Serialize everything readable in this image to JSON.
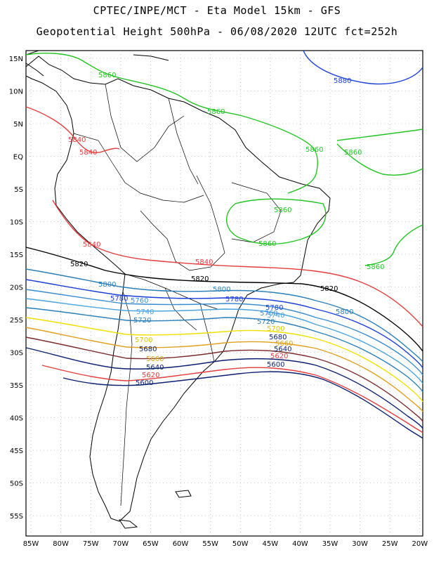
{
  "title_line1": "CPTEC/INPE/MCT -  Eta Model 15km - GFS",
  "title_line2": "Geopotential Height 500hPa - 06/08/2020 12UTC fct=252h",
  "lat_ticks": [
    "15N",
    "10N",
    "5N",
    "EQ",
    "5S",
    "10S",
    "15S",
    "20S",
    "25S",
    "30S",
    "35S",
    "40S",
    "45S",
    "50S",
    "55S"
  ],
  "lon_ticks": [
    "85W",
    "80W",
    "75W",
    "70W",
    "65W",
    "60W",
    "55W",
    "50W",
    "45W",
    "40W",
    "35W",
    "30W",
    "25W",
    "20W"
  ],
  "contour_levels": [
    {
      "value": "5880",
      "color": "#1a3fd6"
    },
    {
      "value": "5860",
      "color": "#22c422"
    },
    {
      "value": "5840",
      "color": "#e23c3c"
    },
    {
      "value": "5820",
      "color": "#000000"
    },
    {
      "value": "5800",
      "color": "#2a7fb8"
    },
    {
      "value": "5780",
      "color": "#1a3fd6"
    },
    {
      "value": "5760",
      "color": "#3a8ccf"
    },
    {
      "value": "5740",
      "color": "#4aa3dd"
    },
    {
      "value": "5720",
      "color": "#2a7fb8"
    },
    {
      "value": "5700",
      "color": "#f0e000"
    },
    {
      "value": "5680",
      "color": "#e0a020"
    },
    {
      "value": "5660",
      "color": "#7a2a2a"
    },
    {
      "value": "5640",
      "color": "#0a1f6f"
    },
    {
      "value": "5620",
      "color": "#e23c3c"
    },
    {
      "value": "5600",
      "color": "#0a1f6f"
    }
  ],
  "contour_labels": [
    {
      "id": "l5880",
      "text": "5880"
    },
    {
      "id": "l5860a",
      "text": "5860"
    },
    {
      "id": "l5860b",
      "text": "5860"
    },
    {
      "id": "l5860c",
      "text": "5860"
    },
    {
      "id": "l5860d",
      "text": "5860"
    },
    {
      "id": "l5860e",
      "text": "5860"
    },
    {
      "id": "l5860f",
      "text": "5860"
    },
    {
      "id": "l5860g",
      "text": "5860"
    },
    {
      "id": "l5840a",
      "text": "5840"
    },
    {
      "id": "l5840b",
      "text": "5840"
    },
    {
      "id": "l5840c",
      "text": "5840"
    },
    {
      "id": "l5840d",
      "text": "5840"
    },
    {
      "id": "l5820a",
      "text": "5820"
    },
    {
      "id": "l5820b",
      "text": "5820"
    },
    {
      "id": "l5820c",
      "text": "5820"
    },
    {
      "id": "l5800a",
      "text": "5800"
    },
    {
      "id": "l5800b",
      "text": "5800"
    },
    {
      "id": "l5800c",
      "text": "5800"
    },
    {
      "id": "l5780a",
      "text": "5780"
    },
    {
      "id": "l5780b",
      "text": "5780"
    },
    {
      "id": "l5780c",
      "text": "5780"
    },
    {
      "id": "l5760a",
      "text": "5760"
    },
    {
      "id": "l5760b",
      "text": "5760"
    },
    {
      "id": "l5740a",
      "text": "5740"
    },
    {
      "id": "l5740b",
      "text": "5740"
    },
    {
      "id": "l5720a",
      "text": "5720"
    },
    {
      "id": "l5720b",
      "text": "5720"
    },
    {
      "id": "l5700a",
      "text": "5700"
    },
    {
      "id": "l5700b",
      "text": "5700"
    },
    {
      "id": "l5680a",
      "text": "5680"
    },
    {
      "id": "l5680b",
      "text": "5680"
    },
    {
      "id": "l5660a",
      "text": "5660"
    },
    {
      "id": "l5660b",
      "text": "5660"
    },
    {
      "id": "l5640a",
      "text": "5640"
    },
    {
      "id": "l5640b",
      "text": "5640"
    },
    {
      "id": "l5620a",
      "text": "5620"
    },
    {
      "id": "l5620b",
      "text": "5620"
    },
    {
      "id": "l5600a",
      "text": "5600"
    },
    {
      "id": "l5600b",
      "text": "5600"
    }
  ]
}
